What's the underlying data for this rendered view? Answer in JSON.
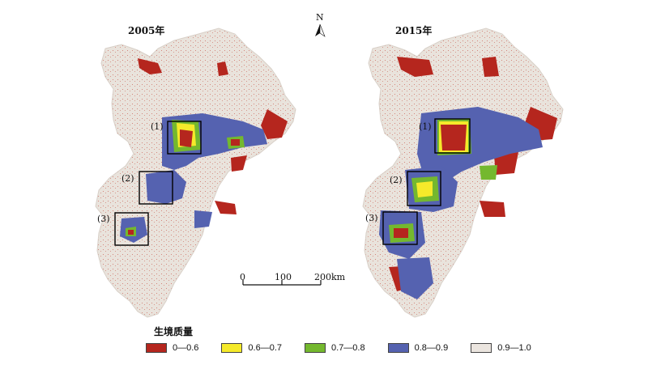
{
  "maps": [
    {
      "year_label": "2005年",
      "boxes": [
        "(1)",
        "(2)",
        "(3)"
      ]
    },
    {
      "year_label": "2015年",
      "boxes": [
        "(1)",
        "(2)",
        "(3)"
      ]
    }
  ],
  "north_arrow": {
    "letter": "N",
    "icon": "north-arrow-icon"
  },
  "scale_bar": {
    "ticks": [
      "0",
      "100",
      "200km"
    ]
  },
  "legend": {
    "title": "生境质量",
    "classes": [
      {
        "label": "0—0.6",
        "color": "#b5261e"
      },
      {
        "label": "0.6—0.7",
        "color": "#f5ea2a"
      },
      {
        "label": "0.7—0.8",
        "color": "#74b82e"
      },
      {
        "label": "0.8—0.9",
        "color": "#5562b0"
      },
      {
        "label": "0.9—1.0",
        "color": "#ebe5df"
      }
    ]
  }
}
